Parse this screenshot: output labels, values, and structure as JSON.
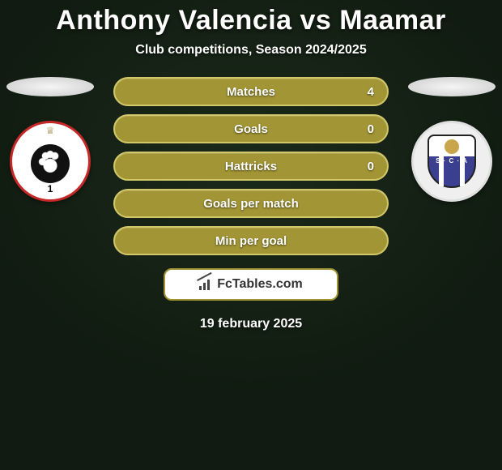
{
  "background_color": "#1a2a1a",
  "title": "Anthony Valencia vs Maamar",
  "subtitle": "Club competitions, Season 2024/2025",
  "date": "19 february 2025",
  "pill_fill_color": "#a29535",
  "pill_border_color": "#d2c86a",
  "stats": [
    {
      "label": "Matches",
      "right_value": "4"
    },
    {
      "label": "Goals",
      "right_value": "0"
    },
    {
      "label": "Hattricks",
      "right_value": "0"
    },
    {
      "label": "Goals per match",
      "right_value": ""
    },
    {
      "label": "Min per goal",
      "right_value": ""
    }
  ],
  "left_player": {
    "club_name": "Royal Antwerp",
    "badge_primary_color": "#c62828",
    "badge_number": "1"
  },
  "right_player": {
    "club_name": "Anderlecht",
    "badge_primary_color": "#3a3f8f"
  },
  "branding": {
    "site_name": "FcTables.com",
    "box_border_color": "#a29535",
    "box_bg": "#ffffff"
  }
}
